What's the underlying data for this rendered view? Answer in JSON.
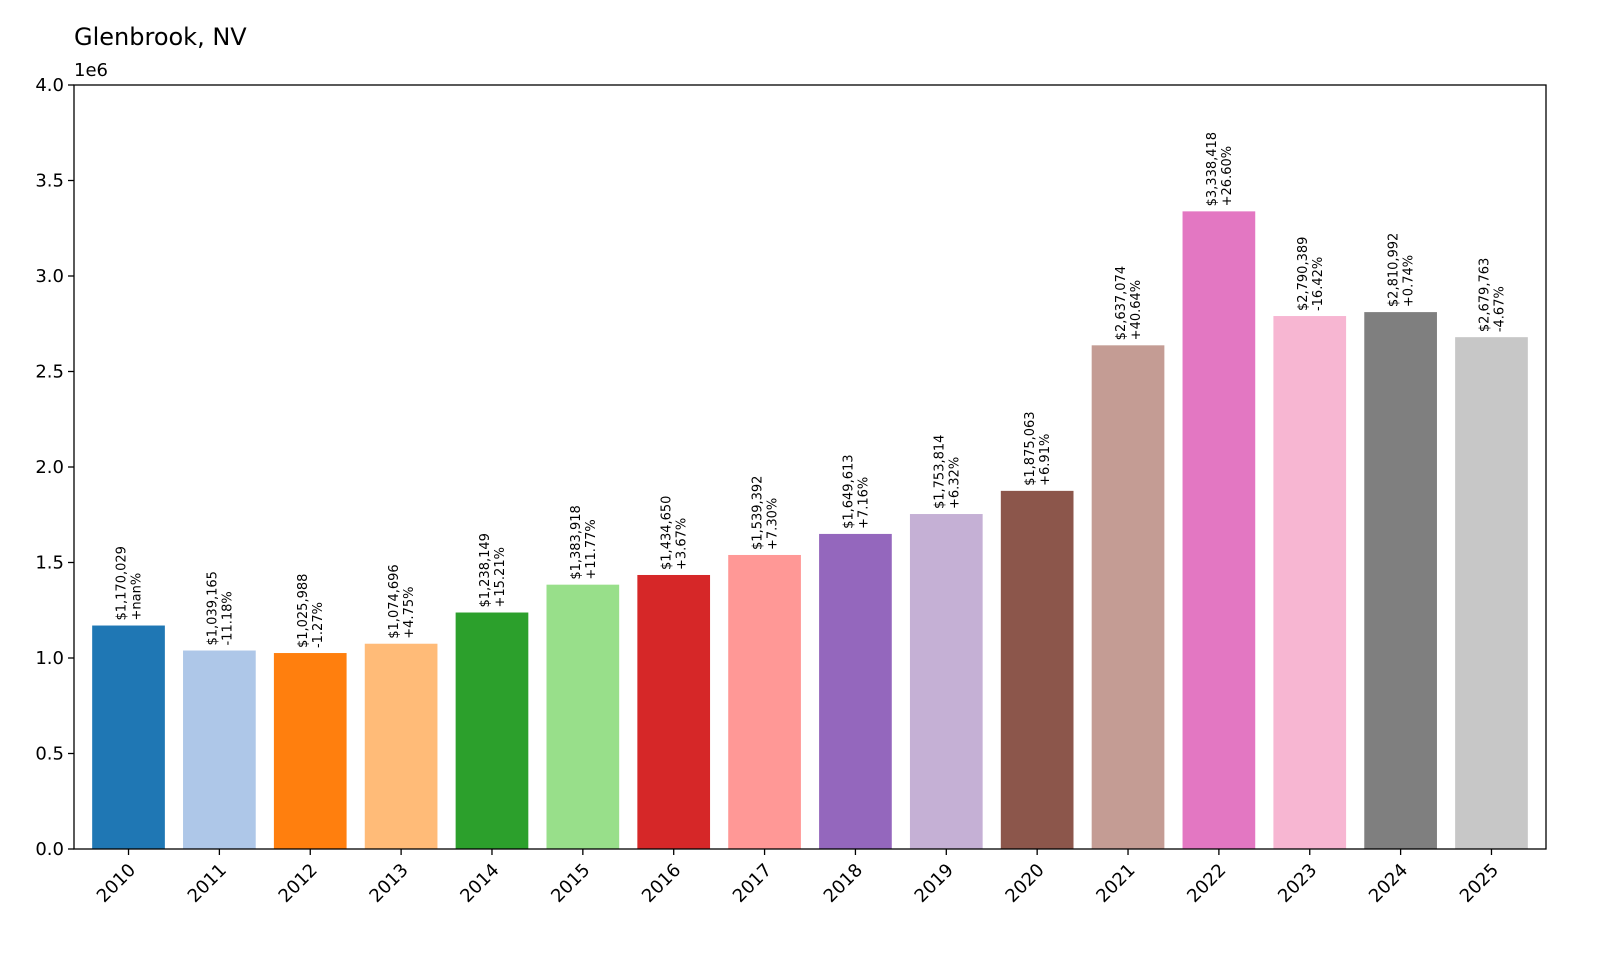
{
  "chart_data": {
    "type": "bar",
    "title": "Glenbrook, NV",
    "y_offset_label": "1e6",
    "xlabel": "",
    "ylabel": "",
    "ylim": [
      0,
      4.0
    ],
    "y_scale_factor": 1000000,
    "yticks": [
      "0.0",
      "0.5",
      "1.0",
      "1.5",
      "2.0",
      "2.5",
      "3.0",
      "3.5",
      "4.0"
    ],
    "grid": false,
    "legend": "none",
    "categories": [
      "2010",
      "2011",
      "2012",
      "2013",
      "2014",
      "2015",
      "2016",
      "2017",
      "2018",
      "2019",
      "2020",
      "2021",
      "2022",
      "2023",
      "2024",
      "2025"
    ],
    "values": [
      1170029,
      1039165,
      1025988,
      1074696,
      1238149,
      1383918,
      1434650,
      1539392,
      1649613,
      1753814,
      1875063,
      2637074,
      3338418,
      2790389,
      2810992,
      2679763
    ],
    "value_labels": [
      "$1,170,029",
      "$1,039,165",
      "$1,025,988",
      "$1,074,696",
      "$1,238,149",
      "$1,383,918",
      "$1,434,650",
      "$1,539,392",
      "$1,649,613",
      "$1,753,814",
      "$1,875,063",
      "$2,637,074",
      "$3,338,418",
      "$2,790,389",
      "$2,810,992",
      "$2,679,763"
    ],
    "change_labels": [
      "+nan%",
      "-11.18%",
      "-1.27%",
      "+4.75%",
      "+15.21%",
      "+11.77%",
      "+3.67%",
      "+7.30%",
      "+7.16%",
      "+6.32%",
      "+6.91%",
      "+40.64%",
      "+26.60%",
      "-16.42%",
      "+0.74%",
      "-4.67%"
    ],
    "colors": [
      "#1f77b4",
      "#aec7e8",
      "#ff7f0e",
      "#ffbb78",
      "#2ca02c",
      "#98df8a",
      "#d62728",
      "#ff9896",
      "#9467bd",
      "#c5b0d5",
      "#8c564b",
      "#c49c94",
      "#e377c2",
      "#f7b6d2",
      "#7f7f7f",
      "#c7c7c7"
    ]
  }
}
